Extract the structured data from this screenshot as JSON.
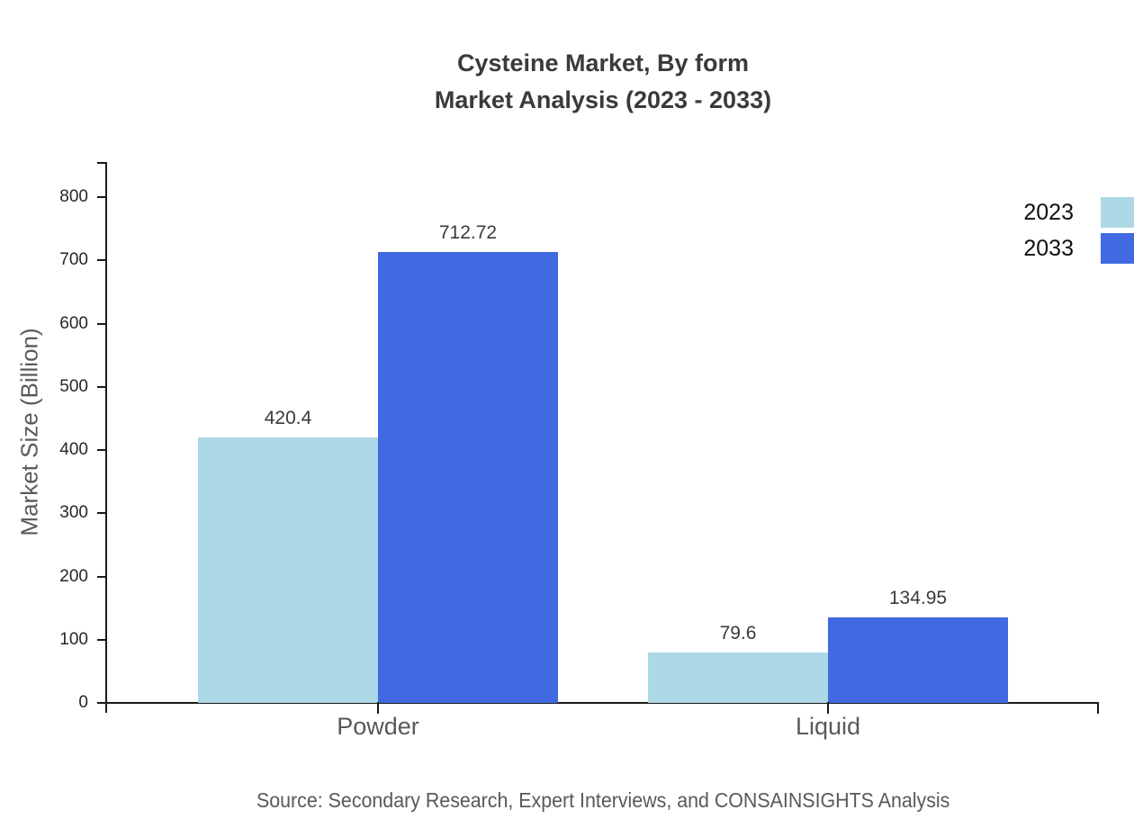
{
  "chart_data": {
    "type": "bar",
    "title": "Cysteine Market, By form\nMarket Analysis (2023 - 2033)",
    "categories": [
      "Powder",
      "Liquid"
    ],
    "series": [
      {
        "name": "2023",
        "color": "#ADD8E6",
        "values": [
          420.4,
          79.6
        ]
      },
      {
        "name": "2033",
        "color": "#4169E1",
        "values": [
          712.72,
          134.95
        ]
      }
    ],
    "value_labels": [
      [
        "420.4",
        "79.6"
      ],
      [
        "712.72",
        "134.95"
      ]
    ],
    "xlabel": "",
    "ylabel": "Market Size (Billion)",
    "ylim": [
      0,
      800
    ],
    "yticks": [
      0,
      100,
      200,
      300,
      400,
      500,
      600,
      700,
      800
    ],
    "grid": false,
    "legend_position": "right",
    "legend_entries": [
      "2023",
      "2033"
    ],
    "source": "Source: Secondary Research, Expert Interviews, and CONSAINSIGHTS Analysis",
    "colors": {
      "series_2023": "#ADD8E6",
      "series_2033": "#4169E1",
      "axis": "#1a1a1a",
      "tick_label": "#262626",
      "category_label": "#595959",
      "value_label": "#3a3a3a",
      "title": "#3a3a3a",
      "source": "#595959"
    }
  }
}
